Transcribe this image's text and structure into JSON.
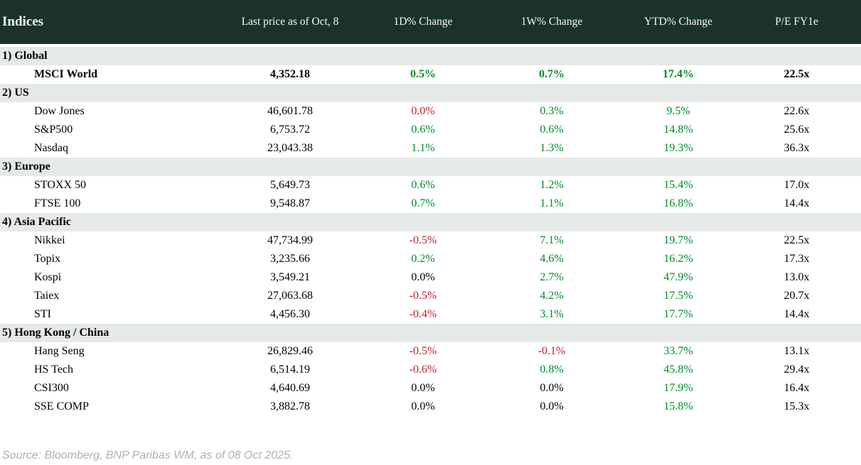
{
  "chart_data": {
    "type": "table",
    "title": "Indices",
    "columns": [
      "Last price as of Oct, 8",
      "1D% Change",
      "1W% Change",
      "YTD% Change",
      "P/E FY1e"
    ],
    "sections": [
      {
        "label": "1) Global",
        "rows": [
          {
            "name": "MSCI World",
            "bold": true,
            "price": "4,352.18",
            "changes": [
              {
                "value": "0.5%",
                "dir": "up"
              },
              {
                "value": "0.7%",
                "dir": "up"
              },
              {
                "value": "17.4%",
                "dir": "up"
              }
            ],
            "pe": "22.5x"
          }
        ]
      },
      {
        "label": "2) US",
        "rows": [
          {
            "name": "Dow Jones",
            "bold": false,
            "price": "46,601.78",
            "changes": [
              {
                "value": "0.0%",
                "dir": "down"
              },
              {
                "value": "0.3%",
                "dir": "up"
              },
              {
                "value": "9.5%",
                "dir": "up"
              }
            ],
            "pe": "22.6x"
          },
          {
            "name": "S&P500",
            "bold": false,
            "price": "6,753.72",
            "changes": [
              {
                "value": "0.6%",
                "dir": "up"
              },
              {
                "value": "0.6%",
                "dir": "up"
              },
              {
                "value": "14.8%",
                "dir": "up"
              }
            ],
            "pe": "25.6x"
          },
          {
            "name": "Nasdaq",
            "bold": false,
            "price": "23,043.38",
            "changes": [
              {
                "value": "1.1%",
                "dir": "up"
              },
              {
                "value": "1.3%",
                "dir": "up"
              },
              {
                "value": "19.3%",
                "dir": "up"
              }
            ],
            "pe": "36.3x"
          }
        ]
      },
      {
        "label": "3) Europe",
        "rows": [
          {
            "name": "STOXX 50",
            "bold": false,
            "price": "5,649.73",
            "changes": [
              {
                "value": "0.6%",
                "dir": "up"
              },
              {
                "value": "1.2%",
                "dir": "up"
              },
              {
                "value": "15.4%",
                "dir": "up"
              }
            ],
            "pe": "17.0x"
          },
          {
            "name": "FTSE 100",
            "bold": false,
            "price": "9,548.87",
            "changes": [
              {
                "value": "0.7%",
                "dir": "up"
              },
              {
                "value": "1.1%",
                "dir": "up"
              },
              {
                "value": "16.8%",
                "dir": "up"
              }
            ],
            "pe": "14.4x"
          }
        ]
      },
      {
        "label": "4) Asia Pacific",
        "rows": [
          {
            "name": "Nikkei",
            "bold": false,
            "price": "47,734.99",
            "changes": [
              {
                "value": "-0.5%",
                "dir": "down"
              },
              {
                "value": "7.1%",
                "dir": "up"
              },
              {
                "value": "19.7%",
                "dir": "up"
              }
            ],
            "pe": "22.5x"
          },
          {
            "name": "Topix",
            "bold": false,
            "price": "3,235.66",
            "changes": [
              {
                "value": "0.2%",
                "dir": "up"
              },
              {
                "value": "4.6%",
                "dir": "up"
              },
              {
                "value": "16.2%",
                "dir": "up"
              }
            ],
            "pe": "17.3x"
          },
          {
            "name": "Kospi",
            "bold": false,
            "price": "3,549.21",
            "changes": [
              {
                "value": "0.0%",
                "dir": "flat"
              },
              {
                "value": "2.7%",
                "dir": "up"
              },
              {
                "value": "47.9%",
                "dir": "up"
              }
            ],
            "pe": "13.0x"
          },
          {
            "name": "Taiex",
            "bold": false,
            "price": "27,063.68",
            "changes": [
              {
                "value": "-0.5%",
                "dir": "down"
              },
              {
                "value": "4.2%",
                "dir": "up"
              },
              {
                "value": "17.5%",
                "dir": "up"
              }
            ],
            "pe": "20.7x"
          },
          {
            "name": "STI",
            "bold": false,
            "price": "4,456.30",
            "changes": [
              {
                "value": "-0.4%",
                "dir": "down"
              },
              {
                "value": "3.1%",
                "dir": "up"
              },
              {
                "value": "17.7%",
                "dir": "up"
              }
            ],
            "pe": "14.4x"
          }
        ]
      },
      {
        "label": "5) Hong Kong / China",
        "rows": [
          {
            "name": "Hang Seng",
            "bold": false,
            "price": "26,829.46",
            "changes": [
              {
                "value": "-0.5%",
                "dir": "down"
              },
              {
                "value": "-0.1%",
                "dir": "down"
              },
              {
                "value": "33.7%",
                "dir": "up"
              }
            ],
            "pe": "13.1x"
          },
          {
            "name": "HS Tech",
            "bold": false,
            "price": "6,514.19",
            "changes": [
              {
                "value": "-0.6%",
                "dir": "down"
              },
              {
                "value": "0.8%",
                "dir": "up"
              },
              {
                "value": "45.8%",
                "dir": "up"
              }
            ],
            "pe": "29.4x"
          },
          {
            "name": "CSI300",
            "bold": false,
            "price": "4,640.69",
            "changes": [
              {
                "value": "0.0%",
                "dir": "flat"
              },
              {
                "value": "0.0%",
                "dir": "flat"
              },
              {
                "value": "17.9%",
                "dir": "up"
              }
            ],
            "pe": "16.4x"
          },
          {
            "name": "SSE COMP",
            "bold": false,
            "price": "3,882.78",
            "changes": [
              {
                "value": "0.0%",
                "dir": "flat"
              },
              {
                "value": "0.0%",
                "dir": "flat"
              },
              {
                "value": "15.8%",
                "dir": "up"
              }
            ],
            "pe": "15.3x"
          }
        ]
      }
    ]
  },
  "footer": {
    "source": "Source: Bloomberg, BNP Paribas WM, as of 08 Oct 2025."
  },
  "colors": {
    "up": "#008a28",
    "down": "#c0222b",
    "flat": "#000000",
    "header_bg": "#1b322c",
    "section_bg": "#e6eae7",
    "footer_text": "#a9b2ba"
  }
}
